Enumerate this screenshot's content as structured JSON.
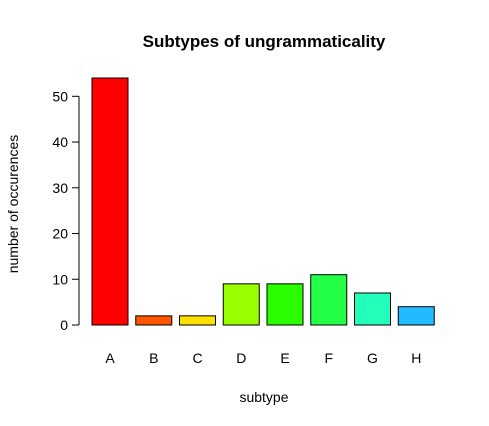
{
  "chart_data": {
    "type": "bar",
    "title": "Subtypes of ungrammaticality",
    "xlabel": "subtype",
    "ylabel": "number of occurences",
    "categories": [
      "A",
      "B",
      "C",
      "D",
      "E",
      "F",
      "G",
      "H"
    ],
    "values": [
      54,
      2,
      2,
      9,
      9,
      11,
      7,
      4
    ],
    "colors": [
      "#FF0000",
      "#FF5500",
      "#FFE100",
      "#99FF00",
      "#2AFF00",
      "#22FF44",
      "#22FFBB",
      "#22BBFF"
    ],
    "ylim": [
      0,
      54
    ],
    "yticks": [
      0,
      10,
      20,
      30,
      40,
      50
    ],
    "grid": false,
    "legend": "none"
  }
}
